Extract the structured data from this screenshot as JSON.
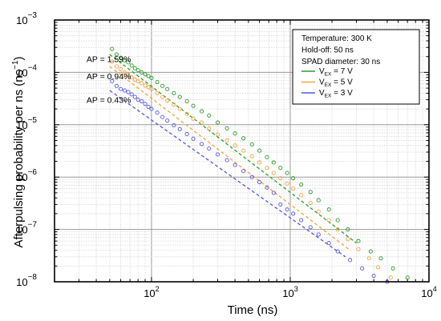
{
  "chart_data": {
    "type": "scatter",
    "xlabel": "Time (ns)",
    "ylabel": "Afterpulsing probability per ns (ns",
    "ylabel_sup": "−1",
    "ylabel_close": ")",
    "x_scale": "log",
    "y_scale": "log",
    "xlim": [
      20,
      10000
    ],
    "ylim": [
      1e-08,
      0.001
    ],
    "grid": true,
    "x_ticks": [
      {
        "base": "10",
        "exp": "2",
        "value": 100
      },
      {
        "base": "10",
        "exp": "3",
        "value": 1000
      },
      {
        "base": "10",
        "exp": "4",
        "value": 10000
      }
    ],
    "y_ticks": [
      {
        "base": "10",
        "exp": "−8",
        "value": 1e-08
      },
      {
        "base": "10",
        "exp": "−7",
        "value": 1e-07
      },
      {
        "base": "10",
        "exp": "−6",
        "value": 1e-06
      },
      {
        "base": "10",
        "exp": "−5",
        "value": 1e-05
      },
      {
        "base": "10",
        "exp": "−4",
        "value": 0.0001
      },
      {
        "base": "10",
        "exp": "−3",
        "value": 0.001
      }
    ],
    "legend": {
      "placement": "top-right",
      "info_lines": [
        "Temperature: 300 K",
        "Hold-off: 50 ns",
        "SPAD diameter: 30 ns"
      ]
    },
    "annotations": [
      {
        "text": "AP = 1.59%",
        "x": 34,
        "y": 0.00018
      },
      {
        "text": "AP = 0.94%",
        "x": 34,
        "y": 8.5e-05
      },
      {
        "text": "AP = 0.43%",
        "x": 34,
        "y": 3e-05
      }
    ],
    "series": [
      {
        "name_main": "V",
        "name_sub": "EX",
        "name_rest": " = 7 V",
        "color": "#2a9d2a",
        "fit": {
          "x": [
            50,
            3000
          ],
          "y": [
            0.00022,
            5.5e-08
          ]
        },
        "points": [
          [
            52,
            0.00028
          ],
          [
            56,
            0.00022
          ],
          [
            60,
            0.00019
          ],
          [
            64,
            0.00017
          ],
          [
            68,
            0.000155
          ],
          [
            72,
            0.000135
          ],
          [
            76,
            0.00012
          ],
          [
            80,
            0.00011
          ],
          [
            85,
            0.0001
          ],
          [
            90,
            9.2e-05
          ],
          [
            95,
            8.5e-05
          ],
          [
            100,
            7.8e-05
          ],
          [
            110,
            6.5e-05
          ],
          [
            120,
            5.5e-05
          ],
          [
            130,
            4.8e-05
          ],
          [
            145,
            4e-05
          ],
          [
            160,
            3.4e-05
          ],
          [
            180,
            2.8e-05
          ],
          [
            200,
            2.3e-05
          ],
          [
            230,
            1.8e-05
          ],
          [
            260,
            1.5e-05
          ],
          [
            300,
            1.1e-05
          ],
          [
            350,
            8.5e-06
          ],
          [
            400,
            6.8e-06
          ],
          [
            460,
            5.5e-06
          ],
          [
            530,
            4.2e-06
          ],
          [
            600,
            3.2e-06
          ],
          [
            680,
            2.4e-06
          ],
          [
            760,
            1.9e-06
          ],
          [
            850,
            1.5e-06
          ],
          [
            950,
            1.2e-06
          ],
          [
            1050,
            9.5e-07
          ],
          [
            1200,
            7.2e-07
          ],
          [
            1400,
            5.2e-07
          ],
          [
            1600,
            3.6e-07
          ],
          [
            1900,
            2.4e-07
          ],
          [
            2200,
            1.5e-07
          ],
          [
            2600,
            1e-07
          ],
          [
            3100,
            6e-08
          ],
          [
            3800,
            3.8e-08
          ],
          [
            4500,
            2.8e-08
          ],
          [
            5500,
            1.8e-08
          ],
          [
            7000,
            1.2e-08
          ]
        ]
      },
      {
        "name_main": "V",
        "name_sub": "EX",
        "name_rest": " = 5 V",
        "color": "#f5a23a",
        "fit": {
          "x": [
            50,
            2700
          ],
          "y": [
            0.00013,
            4e-08
          ]
        },
        "points": [
          [
            52,
            0.00016
          ],
          [
            56,
            0.00013
          ],
          [
            60,
            0.000115
          ],
          [
            64,
            0.0001
          ],
          [
            68,
            9e-05
          ],
          [
            72,
            8e-05
          ],
          [
            76,
            7.2e-05
          ],
          [
            80,
            6.8e-05
          ],
          [
            85,
            6.2e-05
          ],
          [
            90,
            5.6e-05
          ],
          [
            95,
            5.2e-05
          ],
          [
            100,
            4.8e-05
          ],
          [
            110,
            4e-05
          ],
          [
            120,
            3.4e-05
          ],
          [
            130,
            2.9e-05
          ],
          [
            145,
            2.4e-05
          ],
          [
            160,
            2e-05
          ],
          [
            180,
            1.6e-05
          ],
          [
            200,
            1.3e-05
          ],
          [
            230,
            1.1e-05
          ],
          [
            260,
            8.5e-06
          ],
          [
            300,
            6.5e-06
          ],
          [
            350,
            5e-06
          ],
          [
            400,
            4e-06
          ],
          [
            460,
            3.2e-06
          ],
          [
            530,
            2.5e-06
          ],
          [
            600,
            1.9e-06
          ],
          [
            680,
            1.5e-06
          ],
          [
            760,
            1.2e-06
          ],
          [
            850,
            9.5e-07
          ],
          [
            950,
            7.5e-07
          ],
          [
            1050,
            6e-07
          ],
          [
            1200,
            4.5e-07
          ],
          [
            1400,
            3.2e-07
          ],
          [
            1600,
            2.2e-07
          ],
          [
            1900,
            1.5e-07
          ],
          [
            2200,
            1e-07
          ],
          [
            2600,
            6.5e-08
          ],
          [
            3100,
            4.2e-08
          ],
          [
            3700,
            2.8e-08
          ],
          [
            4300,
            1.9e-08
          ],
          [
            5300,
            1.2e-08
          ],
          [
            6500,
            9e-09
          ]
        ]
      },
      {
        "name_main": "V",
        "name_sub": "EX",
        "name_rest": " = 3 V",
        "color": "#5555e0",
        "fit": {
          "x": [
            50,
            2500
          ],
          "y": [
            4.5e-05,
            3e-08
          ]
        },
        "points": [
          [
            52,
            6.8e-05
          ],
          [
            56,
            5.5e-05
          ],
          [
            60,
            4.8e-05
          ],
          [
            64,
            4.5e-05
          ],
          [
            68,
            4.2e-05
          ],
          [
            72,
            3.8e-05
          ],
          [
            76,
            3.4e-05
          ],
          [
            80,
            3e-05
          ],
          [
            85,
            2.8e-05
          ],
          [
            90,
            2.5e-05
          ],
          [
            95,
            2.2e-05
          ],
          [
            100,
            2e-05
          ],
          [
            110,
            1.7e-05
          ],
          [
            120,
            1.4e-05
          ],
          [
            130,
            1.2e-05
          ],
          [
            145,
            9.8e-06
          ],
          [
            160,
            8.2e-06
          ],
          [
            180,
            6.6e-06
          ],
          [
            200,
            5.4e-06
          ],
          [
            230,
            4.3e-06
          ],
          [
            260,
            3.5e-06
          ],
          [
            300,
            2.7e-06
          ],
          [
            350,
            2.1e-06
          ],
          [
            400,
            1.7e-06
          ],
          [
            460,
            1.3e-06
          ],
          [
            530,
            1e-06
          ],
          [
            600,
            8e-07
          ],
          [
            680,
            6.3e-07
          ],
          [
            760,
            5e-07
          ],
          [
            850,
            3e-07
          ],
          [
            950,
            2.4e-07
          ],
          [
            1050,
            2e-07
          ],
          [
            1200,
            1.5e-07
          ],
          [
            1400,
            1.1e-07
          ],
          [
            1600,
            8e-08
          ],
          [
            1900,
            5.5e-08
          ],
          [
            2200,
            3.8e-08
          ],
          [
            2700,
            2.6e-08
          ],
          [
            3300,
            1.8e-08
          ],
          [
            4000,
            1.3e-08
          ],
          [
            5000,
            1e-08
          ],
          [
            6500,
            9e-09
          ]
        ]
      }
    ]
  }
}
